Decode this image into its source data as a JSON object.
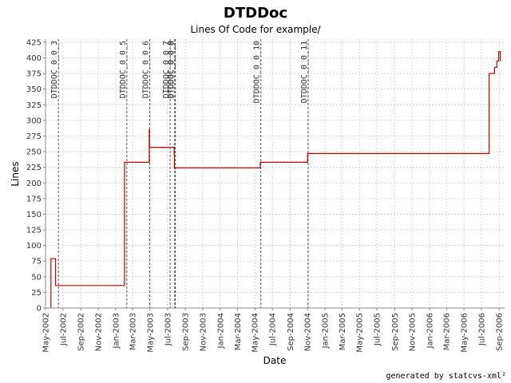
{
  "chart_data": {
    "type": "line",
    "title": "DTDDoc",
    "subtitle": "Lines Of Code for example/",
    "xlabel": "Date",
    "ylabel": "Lines",
    "x_range": [
      "2002-05-01",
      "2006-09-20"
    ],
    "ylim": [
      0,
      430
    ],
    "y_ticks": [
      0,
      25,
      50,
      75,
      100,
      125,
      150,
      175,
      200,
      225,
      250,
      275,
      300,
      325,
      350,
      375,
      400,
      425
    ],
    "x_ticks": [
      {
        "date": "2002-05-01",
        "label": "May-2002"
      },
      {
        "date": "2002-07-01",
        "label": "Jul-2002"
      },
      {
        "date": "2002-09-01",
        "label": "Sep-2002"
      },
      {
        "date": "2002-11-01",
        "label": "Nov-2002"
      },
      {
        "date": "2003-01-01",
        "label": "Jan-2003"
      },
      {
        "date": "2003-03-01",
        "label": "Mar-2003"
      },
      {
        "date": "2003-05-01",
        "label": "May-2003"
      },
      {
        "date": "2003-07-01",
        "label": "Jul-2003"
      },
      {
        "date": "2003-09-01",
        "label": "Sep-2003"
      },
      {
        "date": "2003-11-01",
        "label": "Nov-2003"
      },
      {
        "date": "2004-01-01",
        "label": "Jan-2004"
      },
      {
        "date": "2004-03-01",
        "label": "Mar-2004"
      },
      {
        "date": "2004-05-01",
        "label": "May-2004"
      },
      {
        "date": "2004-07-01",
        "label": "Jul-2004"
      },
      {
        "date": "2004-09-01",
        "label": "Sep-2004"
      },
      {
        "date": "2004-11-01",
        "label": "Nov-2004"
      },
      {
        "date": "2005-01-01",
        "label": "Jan-2005"
      },
      {
        "date": "2005-03-01",
        "label": "Mar-2005"
      },
      {
        "date": "2005-05-01",
        "label": "May-2005"
      },
      {
        "date": "2005-07-01",
        "label": "Jul-2005"
      },
      {
        "date": "2005-09-01",
        "label": "Sep-2005"
      },
      {
        "date": "2005-11-01",
        "label": "Nov-2005"
      },
      {
        "date": "2006-01-01",
        "label": "Jan-2006"
      },
      {
        "date": "2006-03-01",
        "label": "Mar-2006"
      },
      {
        "date": "2006-05-01",
        "label": "May-2006"
      },
      {
        "date": "2006-07-01",
        "label": "Jul-2006"
      },
      {
        "date": "2006-09-01",
        "label": "Sep-2006"
      }
    ],
    "grid": true,
    "series": [
      {
        "color": "#cc0000",
        "step": true,
        "points": [
          {
            "x": "2002-05-20",
            "y": 0
          },
          {
            "x": "2002-05-20",
            "y": 79
          },
          {
            "x": "2002-06-05",
            "y": 79
          },
          {
            "x": "2002-06-05",
            "y": 36
          },
          {
            "x": "2003-02-01",
            "y": 36
          },
          {
            "x": "2003-02-01",
            "y": 233
          },
          {
            "x": "2003-04-28",
            "y": 233
          },
          {
            "x": "2003-04-28",
            "y": 285
          },
          {
            "x": "2003-04-29",
            "y": 285
          },
          {
            "x": "2003-04-29",
            "y": 257
          },
          {
            "x": "2003-07-24",
            "y": 257
          },
          {
            "x": "2003-07-24",
            "y": 245
          },
          {
            "x": "2003-07-25",
            "y": 245
          },
          {
            "x": "2003-07-25",
            "y": 224
          },
          {
            "x": "2004-05-20",
            "y": 224
          },
          {
            "x": "2004-05-20",
            "y": 233
          },
          {
            "x": "2004-11-01",
            "y": 233
          },
          {
            "x": "2004-11-01",
            "y": 247
          },
          {
            "x": "2006-07-28",
            "y": 247
          },
          {
            "x": "2006-07-28",
            "y": 375
          },
          {
            "x": "2006-08-16",
            "y": 375
          },
          {
            "x": "2006-08-16",
            "y": 385
          },
          {
            "x": "2006-08-24",
            "y": 385
          },
          {
            "x": "2006-08-24",
            "y": 395
          },
          {
            "x": "2006-08-30",
            "y": 395
          },
          {
            "x": "2006-08-30",
            "y": 410
          },
          {
            "x": "2006-09-05",
            "y": 410
          },
          {
            "x": "2006-09-05",
            "y": 395
          }
        ]
      }
    ],
    "markers": [
      {
        "x": "2002-06-15",
        "label": "DTDDOC_0_0_3"
      },
      {
        "x": "2003-02-09",
        "label": "DTDDOC_0_0_5"
      },
      {
        "x": "2003-04-30",
        "label": "DTDDOC_0_0_6"
      },
      {
        "x": "2003-07-10",
        "label": "DTDDOC_0_0_7"
      },
      {
        "x": "2003-07-26",
        "label": "DTDDOC_0_0_8"
      },
      {
        "x": "2003-07-28",
        "label": "DTDDOC_0_0_9"
      },
      {
        "x": "2004-05-22",
        "label": "DTDDOC_0_0_10"
      },
      {
        "x": "2004-11-03",
        "label": "DTDDOC_0_0_11"
      }
    ]
  },
  "footer": "generated by statcvs-xml²"
}
